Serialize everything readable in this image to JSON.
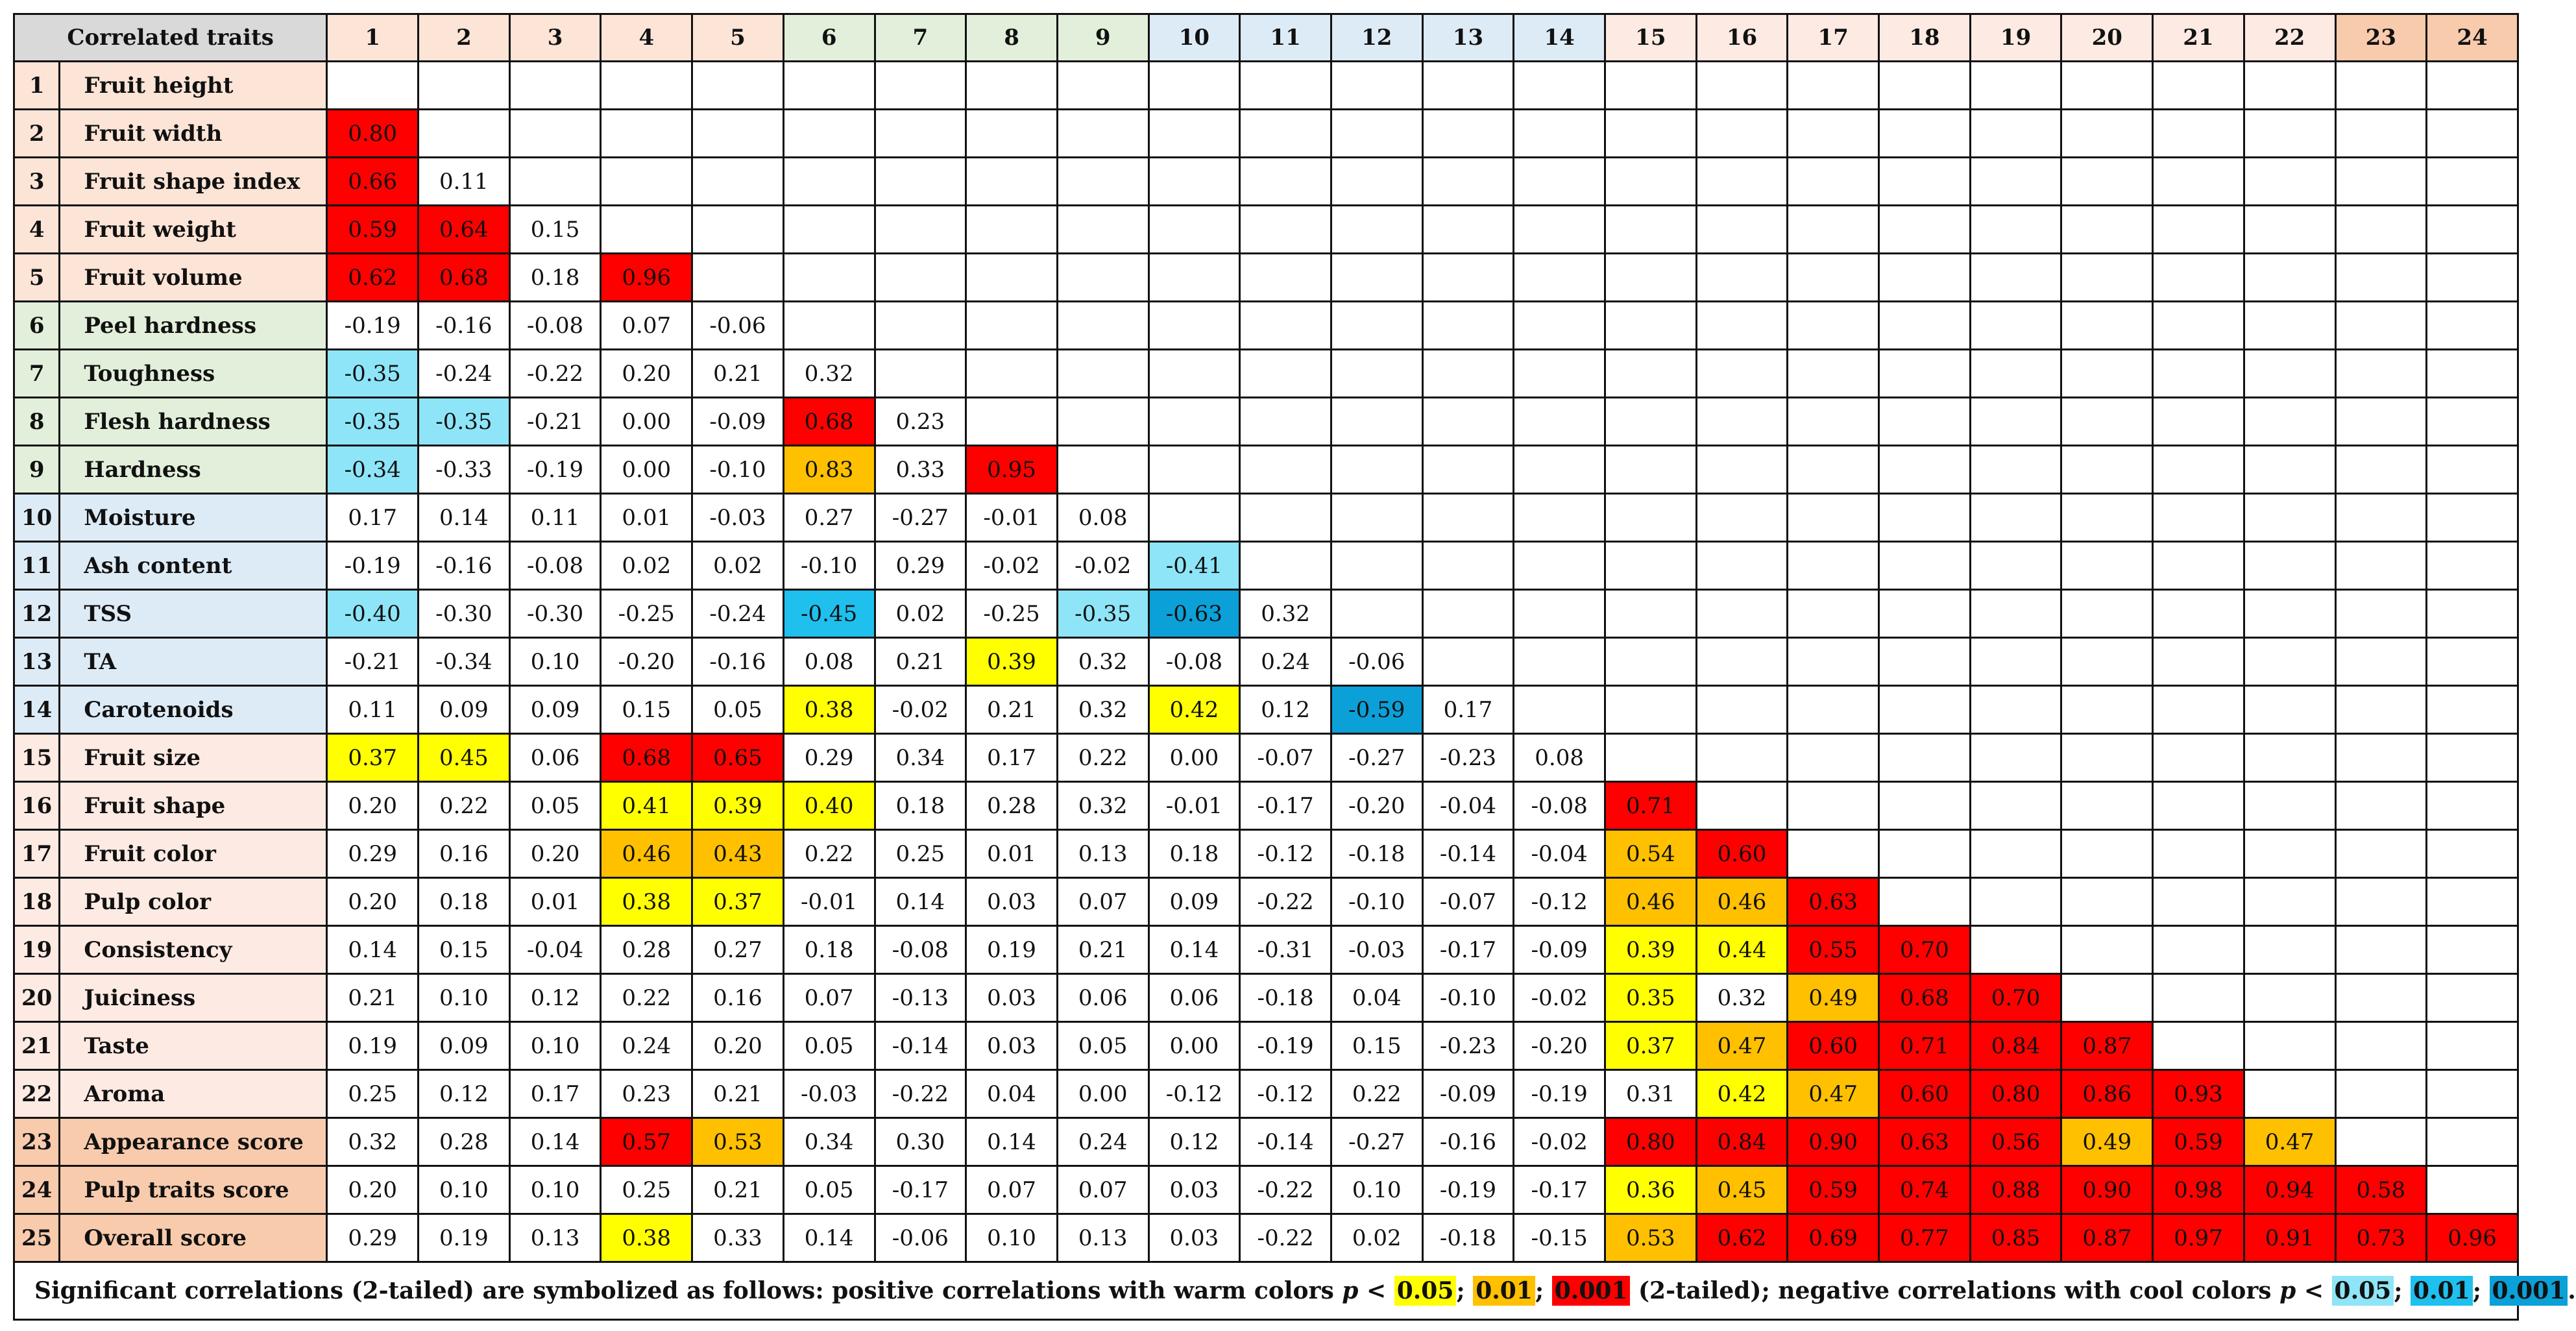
{
  "chart_data": {
    "type": "table",
    "corner_label": "Correlated traits",
    "column_numbers": [
      "1",
      "2",
      "3",
      "4",
      "5",
      "6",
      "7",
      "8",
      "9",
      "10",
      "11",
      "12",
      "13",
      "14",
      "15",
      "16",
      "17",
      "18",
      "19",
      "20",
      "21",
      "22",
      "23",
      "24"
    ],
    "traits": [
      "Fruit height",
      "Fruit width",
      "Fruit shape index",
      "Fruit weight",
      "Fruit volume",
      "Peel hardness",
      "Toughness",
      "Flesh hardness",
      "Hardness",
      "Moisture",
      "Ash content",
      "TSS",
      "TA",
      "Carotenoids",
      "Fruit size",
      "Fruit shape",
      "Fruit color",
      "Pulp color",
      "Consistency",
      "Juiciness",
      "Taste",
      "Aroma",
      "Appearance score",
      "Pulp traits score",
      "Overall score"
    ],
    "group_of_trait": [
      "a",
      "a",
      "a",
      "a",
      "a",
      "b",
      "b",
      "b",
      "b",
      "c",
      "c",
      "c",
      "c",
      "c",
      "d",
      "d",
      "d",
      "d",
      "d",
      "d",
      "d",
      "d",
      "e",
      "e",
      "e"
    ],
    "group_colors": {
      "a": "#fce4d6",
      "b": "#e2efda",
      "c": "#ddebf7",
      "d": "#fdeae3",
      "e": "#f8cbad"
    },
    "significance_colors": {
      "p1": "#ffff00",
      "p2": "#ffc000",
      "p3": "#ff0000",
      "n1": "#8ee5f8",
      "n2": "#1fc0ee",
      "n3": "#0ba0d8"
    },
    "matrix": [
      [],
      [
        "0.80"
      ],
      [
        "0.66",
        "0.11"
      ],
      [
        "0.59",
        "0.64",
        "0.15"
      ],
      [
        "0.62",
        "0.68",
        "0.18",
        "0.96"
      ],
      [
        "-0.19",
        "-0.16",
        "-0.08",
        "0.07",
        "-0.06"
      ],
      [
        "-0.35",
        "-0.24",
        "-0.22",
        "0.20",
        "0.21",
        "0.32"
      ],
      [
        "-0.35",
        "-0.35",
        "-0.21",
        "0.00",
        "-0.09",
        "0.68",
        "0.23"
      ],
      [
        "-0.34",
        "-0.33",
        "-0.19",
        "0.00",
        "-0.10",
        "0.83",
        "0.33",
        "0.95"
      ],
      [
        "0.17",
        "0.14",
        "0.11",
        "0.01",
        "-0.03",
        "0.27",
        "-0.27",
        "-0.01",
        "0.08"
      ],
      [
        "-0.19",
        "-0.16",
        "-0.08",
        "0.02",
        "0.02",
        "-0.10",
        "0.29",
        "-0.02",
        "-0.02",
        "-0.41"
      ],
      [
        "-0.40",
        "-0.30",
        "-0.30",
        "-0.25",
        "-0.24",
        "-0.45",
        "0.02",
        "-0.25",
        "-0.35",
        "-0.63",
        "0.32"
      ],
      [
        "-0.21",
        "-0.34",
        "0.10",
        "-0.20",
        "-0.16",
        "0.08",
        "0.21",
        "0.39",
        "0.32",
        "-0.08",
        "0.24",
        "-0.06"
      ],
      [
        "0.11",
        "0.09",
        "0.09",
        "0.15",
        "0.05",
        "0.38",
        "-0.02",
        "0.21",
        "0.32",
        "0.42",
        "0.12",
        "-0.59",
        "0.17"
      ],
      [
        "0.37",
        "0.45",
        "0.06",
        "0.68",
        "0.65",
        "0.29",
        "0.34",
        "0.17",
        "0.22",
        "0.00",
        "-0.07",
        "-0.27",
        "-0.23",
        "0.08"
      ],
      [
        "0.20",
        "0.22",
        "0.05",
        "0.41",
        "0.39",
        "0.40",
        "0.18",
        "0.28",
        "0.32",
        "-0.01",
        "-0.17",
        "-0.20",
        "-0.04",
        "-0.08",
        "0.71"
      ],
      [
        "0.29",
        "0.16",
        "0.20",
        "0.46",
        "0.43",
        "0.22",
        "0.25",
        "0.01",
        "0.13",
        "0.18",
        "-0.12",
        "-0.18",
        "-0.14",
        "-0.04",
        "0.54",
        "0.60"
      ],
      [
        "0.20",
        "0.18",
        "0.01",
        "0.38",
        "0.37",
        "-0.01",
        "0.14",
        "0.03",
        "0.07",
        "0.09",
        "-0.22",
        "-0.10",
        "-0.07",
        "-0.12",
        "0.46",
        "0.46",
        "0.63"
      ],
      [
        "0.14",
        "0.15",
        "-0.04",
        "0.28",
        "0.27",
        "0.18",
        "-0.08",
        "0.19",
        "0.21",
        "0.14",
        "-0.31",
        "-0.03",
        "-0.17",
        "-0.09",
        "0.39",
        "0.44",
        "0.55",
        "0.70"
      ],
      [
        "0.21",
        "0.10",
        "0.12",
        "0.22",
        "0.16",
        "0.07",
        "-0.13",
        "0.03",
        "0.06",
        "0.06",
        "-0.18",
        "0.04",
        "-0.10",
        "-0.02",
        "0.35",
        "0.32",
        "0.49",
        "0.68",
        "0.70"
      ],
      [
        "0.19",
        "0.09",
        "0.10",
        "0.24",
        "0.20",
        "0.05",
        "-0.14",
        "0.03",
        "0.05",
        "0.00",
        "-0.19",
        "0.15",
        "-0.23",
        "-0.20",
        "0.37",
        "0.47",
        "0.60",
        "0.71",
        "0.84",
        "0.87"
      ],
      [
        "0.25",
        "0.12",
        "0.17",
        "0.23",
        "0.21",
        "-0.03",
        "-0.22",
        "0.04",
        "0.00",
        "-0.12",
        "-0.12",
        "0.22",
        "-0.09",
        "-0.19",
        "0.31",
        "0.42",
        "0.47",
        "0.60",
        "0.80",
        "0.86",
        "0.93"
      ],
      [
        "0.32",
        "0.28",
        "0.14",
        "0.57",
        "0.53",
        "0.34",
        "0.30",
        "0.14",
        "0.24",
        "0.12",
        "-0.14",
        "-0.27",
        "-0.16",
        "-0.02",
        "0.80",
        "0.84",
        "0.90",
        "0.63",
        "0.56",
        "0.49",
        "0.59",
        "0.47"
      ],
      [
        "0.20",
        "0.10",
        "0.10",
        "0.25",
        "0.21",
        "0.05",
        "-0.17",
        "0.07",
        "0.07",
        "0.03",
        "-0.22",
        "0.10",
        "-0.19",
        "-0.17",
        "0.36",
        "0.45",
        "0.59",
        "0.74",
        "0.88",
        "0.90",
        "0.98",
        "0.94",
        "0.58"
      ],
      [
        "0.29",
        "0.19",
        "0.13",
        "0.38",
        "0.33",
        "0.14",
        "-0.06",
        "0.10",
        "0.13",
        "0.03",
        "-0.22",
        "0.02",
        "-0.18",
        "-0.15",
        "0.53",
        "0.62",
        "0.69",
        "0.77",
        "0.85",
        "0.87",
        "0.97",
        "0.91",
        "0.73",
        "0.96"
      ]
    ],
    "significance": [
      [],
      [
        "p3"
      ],
      [
        "p3",
        ""
      ],
      [
        "p3",
        "p3",
        ""
      ],
      [
        "p3",
        "p3",
        "",
        "p3"
      ],
      [
        "",
        "",
        "",
        "",
        ""
      ],
      [
        "n1",
        "",
        "",
        "",
        "",
        ""
      ],
      [
        "n1",
        "n1",
        "",
        "",
        "",
        "p3",
        ""
      ],
      [
        "n1",
        "",
        "",
        "",
        "",
        "p2",
        "",
        "p3"
      ],
      [
        "",
        "",
        "",
        "",
        "",
        "",
        "",
        "",
        ""
      ],
      [
        "",
        "",
        "",
        "",
        "",
        "",
        "",
        "",
        "",
        "n1"
      ],
      [
        "n1",
        "",
        "",
        "",
        "",
        "n2",
        "",
        "",
        "n1",
        "n3",
        ""
      ],
      [
        "",
        "",
        "",
        "",
        "",
        "",
        "",
        "p1",
        "",
        "",
        "",
        ""
      ],
      [
        "",
        "",
        "",
        "",
        "",
        "p1",
        "",
        "",
        "",
        "p1",
        "",
        "n3",
        ""
      ],
      [
        "p1",
        "p1",
        "",
        "p3",
        "p3",
        "",
        "",
        "",
        "",
        "",
        "",
        "",
        "",
        ""
      ],
      [
        "",
        "",
        "",
        "p1",
        "p1",
        "p1",
        "",
        "",
        "",
        "",
        "",
        "",
        "",
        "",
        "p3"
      ],
      [
        "",
        "",
        "",
        "p2",
        "p2",
        "",
        "",
        "",
        "",
        "",
        "",
        "",
        "",
        "",
        "p2",
        "p3"
      ],
      [
        "",
        "",
        "",
        "p1",
        "p1",
        "",
        "",
        "",
        "",
        "",
        "",
        "",
        "",
        "",
        "p2",
        "p2",
        "p3"
      ],
      [
        "",
        "",
        "",
        "",
        "",
        "",
        "",
        "",
        "",
        "",
        "",
        "",
        "",
        "",
        "p1",
        "p1",
        "p3",
        "p3"
      ],
      [
        "",
        "",
        "",
        "",
        "",
        "",
        "",
        "",
        "",
        "",
        "",
        "",
        "",
        "",
        "p1",
        "",
        "p2",
        "p3",
        "p3"
      ],
      [
        "",
        "",
        "",
        "",
        "",
        "",
        "",
        "",
        "",
        "",
        "",
        "",
        "",
        "",
        "p1",
        "p2",
        "p3",
        "p3",
        "p3",
        "p3"
      ],
      [
        "",
        "",
        "",
        "",
        "",
        "",
        "",
        "",
        "",
        "",
        "",
        "",
        "",
        "",
        "",
        "p1",
        "p2",
        "p3",
        "p3",
        "p3",
        "p3"
      ],
      [
        "",
        "",
        "",
        "p3",
        "p2",
        "",
        "",
        "",
        "",
        "",
        "",
        "",
        "",
        "",
        "p3",
        "p3",
        "p3",
        "p3",
        "p3",
        "p2",
        "p3",
        "p2"
      ],
      [
        "",
        "",
        "",
        "",
        "",
        "",
        "",
        "",
        "",
        "",
        "",
        "",
        "",
        "",
        "p1",
        "p2",
        "p3",
        "p3",
        "p3",
        "p3",
        "p3",
        "p3",
        "p3"
      ],
      [
        "",
        "",
        "",
        "p1",
        "",
        "",
        "",
        "",
        "",
        "",
        "",
        "",
        "",
        "",
        "p2",
        "p3",
        "p3",
        "p3",
        "p3",
        "p3",
        "p3",
        "p3",
        "p3",
        "p3"
      ]
    ],
    "note": {
      "part1": "Significant correlations (2-tailed) are symbolized as follows: positive correlations with warm colors ",
      "p_symbol": "p",
      "lt": " < ",
      "pos1": "0.05",
      "sep": "; ",
      "pos2": "0.01",
      "pos3": "0.001",
      "mid": " (2-tailed); negative correlations with cool colors ",
      "neg1": "0.05",
      "neg2": "0.01",
      "neg3": "0.001",
      "end": "."
    }
  }
}
